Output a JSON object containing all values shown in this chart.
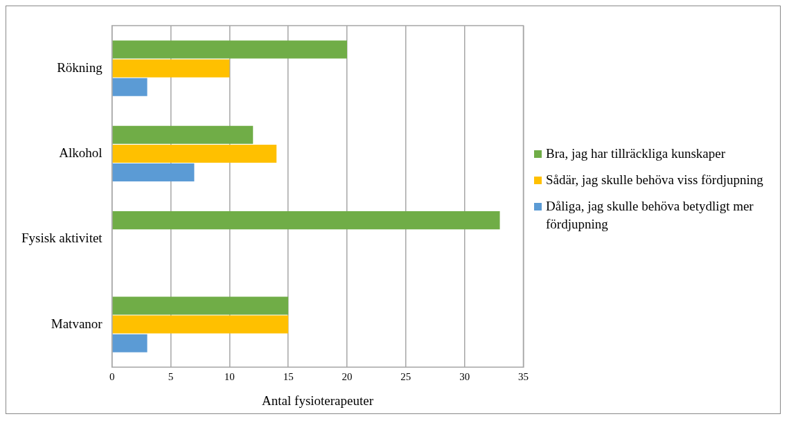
{
  "chart_data": {
    "type": "bar",
    "orientation": "horizontal",
    "xlabel": "Antal fysioterapeuter",
    "categories": [
      "Rökning",
      "Alkohol",
      "Fysisk aktivitet",
      "Matvanor"
    ],
    "series": [
      {
        "name": "Bra, jag har tillräckliga kunskaper",
        "color": "#70ad47",
        "values": [
          20,
          12,
          33,
          15
        ]
      },
      {
        "name": "Sådär, jag skulle behöva viss fördjupning",
        "color": "#ffc000",
        "values": [
          10,
          14,
          0,
          15
        ]
      },
      {
        "name": "Dåliga, jag skulle behöva betydligt mer fördjupning",
        "color": "#5b9bd5",
        "values": [
          3,
          7,
          0,
          3
        ]
      }
    ],
    "xlim": [
      0,
      35
    ],
    "xticks": [
      0,
      5,
      10,
      15,
      20,
      25,
      30,
      35
    ],
    "grid": "x",
    "legend": "right"
  }
}
